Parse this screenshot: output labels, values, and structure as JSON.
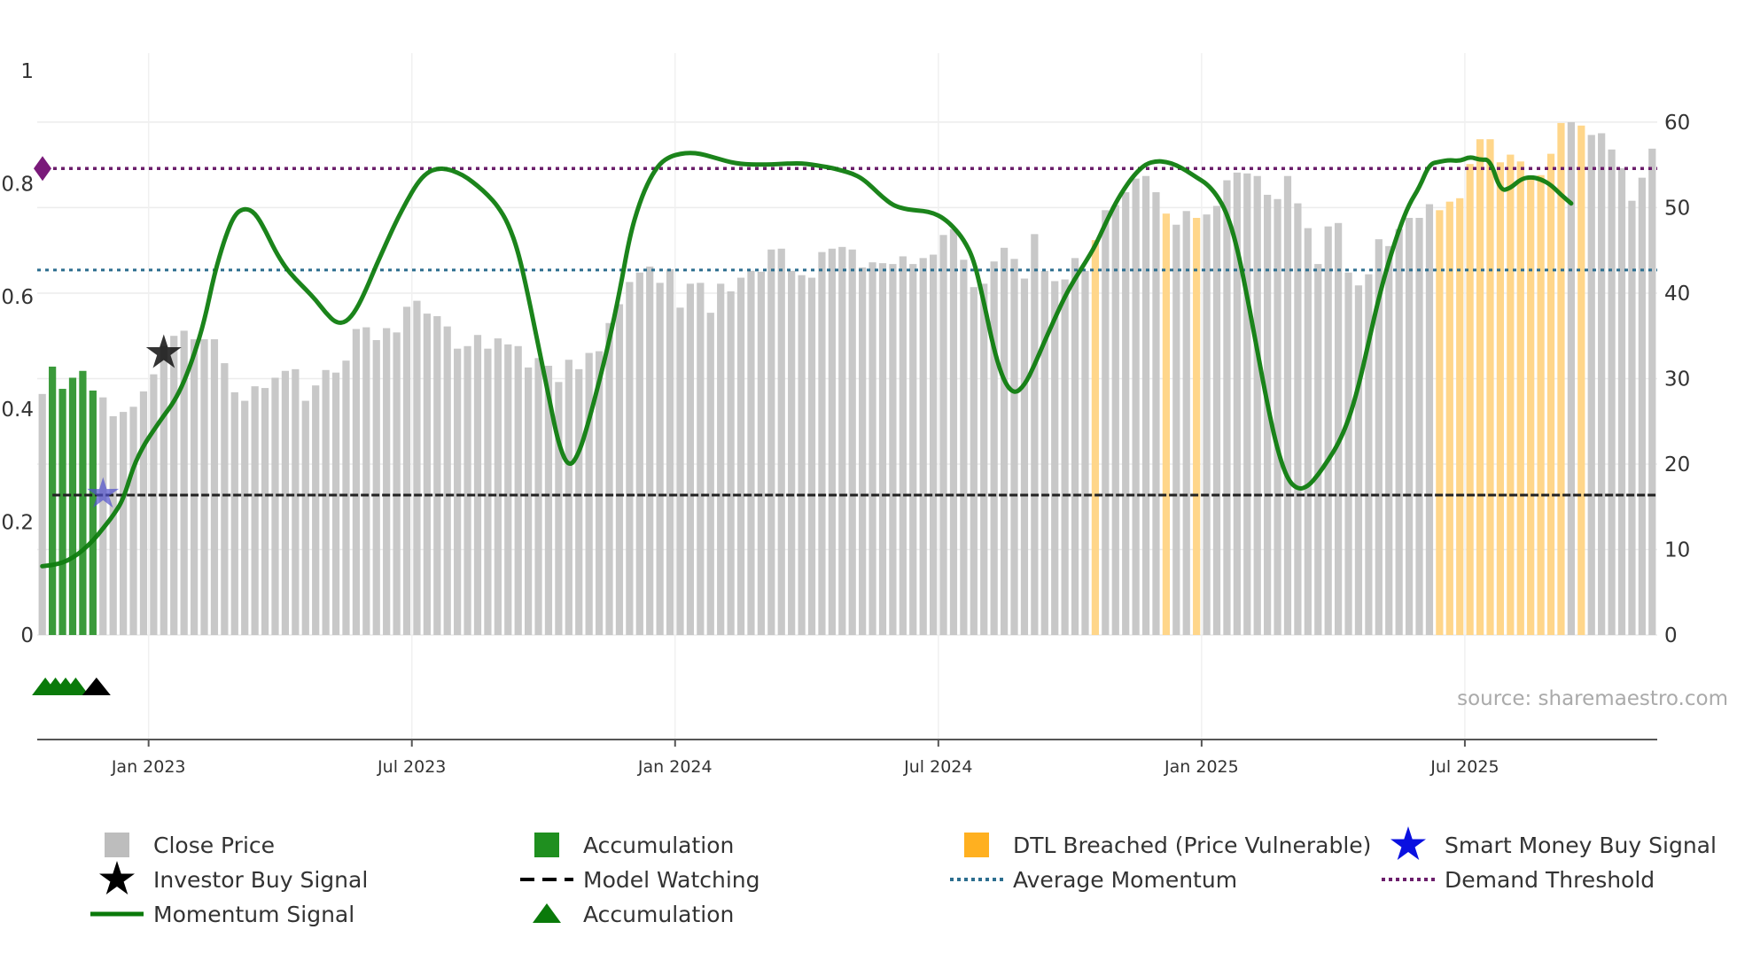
{
  "chart_data": {
    "type": "bar",
    "title": "",
    "source_label": "source: sharemaestro.com",
    "x_ticks": [
      "Jan 2023",
      "Jul 2023",
      "Jan 2024",
      "Jul 2024",
      "Jan 2025",
      "Jul 2025"
    ],
    "y_left": {
      "ticks": [
        "0",
        "0.2",
        "0.4",
        "0.6",
        "0.8",
        "1"
      ],
      "ylim": [
        0,
        1
      ]
    },
    "y_right": {
      "ticks": [
        "0",
        "10",
        "20",
        "30",
        "40",
        "50",
        "60"
      ],
      "ylim": [
        0,
        66
      ]
    },
    "colors": {
      "close": "#c8c8c8",
      "accumulation": "#3a9a3a",
      "dtl": "#ffd68a",
      "momentum": "#0f7d0f",
      "average": "#2c6e8f",
      "demand": "#6b1e6b",
      "watching": "#222222",
      "investor": "#111111",
      "smart_money": "#5050cc"
    },
    "prices": [
      28.2,
      31.4,
      28.8,
      30.1,
      30.9,
      28.6,
      27.8,
      25.6,
      26.1,
      26.7,
      28.5,
      30.5,
      33.8,
      35.0,
      35.6,
      34.6,
      34.6,
      34.6,
      31.8,
      28.4,
      27.4,
      29.1,
      28.9,
      30.1,
      30.9,
      31.1,
      27.4,
      29.2,
      31.0,
      30.7,
      32.1,
      35.8,
      36.0,
      34.5,
      35.9,
      35.4,
      38.4,
      39.1,
      37.6,
      37.3,
      36.1,
      33.5,
      33.8,
      35.1,
      33.5,
      34.7,
      34.0,
      33.8,
      31.3,
      32.4,
      31.5,
      29.6,
      32.2,
      31.1,
      33.0,
      33.2,
      36.5,
      38.7,
      41.3,
      42.4,
      43.1,
      41.2,
      42.8,
      38.3,
      41.1,
      41.2,
      37.7,
      41.1,
      40.2,
      41.8,
      42.6,
      42.5,
      45.1,
      45.2,
      42.6,
      42.1,
      41.8,
      44.8,
      45.2,
      45.4,
      45.1,
      43.0,
      43.6,
      43.5,
      43.4,
      44.3,
      43.4,
      44.1,
      44.5,
      46.8,
      47.5,
      43.9,
      40.7,
      41.1,
      43.7,
      45.3,
      44.0,
      41.7,
      46.9,
      42.6,
      41.4,
      41.6,
      44.1,
      42.6,
      46.2,
      49.7,
      50.3,
      51.8,
      53.4,
      53.7,
      51.8,
      49.3,
      48.0,
      49.6,
      48.8,
      49.2,
      50.2,
      53.2,
      54.1,
      54.0,
      53.7,
      51.5,
      51.0,
      53.7,
      50.5,
      47.6,
      43.4,
      47.8,
      48.2,
      42.4,
      40.9,
      42.2,
      46.3,
      45.5,
      47.5,
      48.8,
      48.8,
      50.4,
      49.7,
      50.7,
      51.1,
      55.1,
      58.0,
      58.0,
      55.3,
      56.2,
      55.4,
      53.5,
      53.8,
      56.3,
      59.9,
      60.0,
      59.6,
      58.5,
      58.7,
      56.8,
      54.6,
      50.8,
      53.5,
      56.9
    ],
    "dtl_bars": [
      104,
      111,
      114,
      138,
      139,
      140,
      141,
      142,
      143,
      144,
      145,
      146,
      147,
      148,
      149,
      150,
      152
    ],
    "accumulation_bars": [
      1,
      2,
      3,
      4,
      5
    ],
    "momentum": [
      0.122,
      0.124,
      0.128,
      0.137,
      0.15,
      0.167,
      0.189,
      0.212,
      0.24,
      0.299,
      0.336,
      0.363,
      0.389,
      0.413,
      0.449,
      0.497,
      0.556,
      0.64,
      0.702,
      0.746,
      0.757,
      0.749,
      0.718,
      0.681,
      0.652,
      0.631,
      0.613,
      0.594,
      0.571,
      0.553,
      0.554,
      0.576,
      0.613,
      0.656,
      0.696,
      0.735,
      0.769,
      0.8,
      0.82,
      0.827,
      0.826,
      0.82,
      0.81,
      0.796,
      0.78,
      0.76,
      0.73,
      0.68,
      0.601,
      0.512,
      0.424,
      0.337,
      0.296,
      0.321,
      0.381,
      0.449,
      0.522,
      0.606,
      0.706,
      0.767,
      0.809,
      0.836,
      0.848,
      0.853,
      0.855,
      0.853,
      0.848,
      0.843,
      0.838,
      0.835,
      0.834,
      0.834,
      0.834,
      0.835,
      0.836,
      0.836,
      0.834,
      0.831,
      0.828,
      0.823,
      0.818,
      0.809,
      0.793,
      0.776,
      0.762,
      0.756,
      0.753,
      0.752,
      0.748,
      0.739,
      0.723,
      0.701,
      0.666,
      0.59,
      0.504,
      0.448,
      0.427,
      0.442,
      0.479,
      0.521,
      0.561,
      0.6,
      0.632,
      0.66,
      0.69,
      0.729,
      0.766,
      0.795,
      0.819,
      0.835,
      0.84,
      0.839,
      0.833,
      0.823,
      0.811,
      0.8,
      0.78,
      0.748,
      0.688,
      0.6,
      0.504,
      0.409,
      0.327,
      0.275,
      0.258,
      0.263,
      0.284,
      0.31,
      0.339,
      0.38,
      0.441,
      0.519,
      0.598,
      0.663,
      0.719,
      0.764,
      0.793,
      0.835,
      0.839,
      0.842,
      0.84,
      0.848,
      0.842,
      0.843,
      0.787,
      0.792,
      0.808,
      0.812,
      0.808,
      0.798,
      0.78,
      0.765
    ],
    "average_momentum": 0.647,
    "demand_threshold": 0.827,
    "model_watching": 0.248,
    "investor_signal": {
      "index": 12,
      "y": 0.5
    },
    "smart_money_signal": {
      "index": 6,
      "y": 0.25
    },
    "accumulation_markers": [
      1,
      2,
      3,
      4
    ],
    "watch_marker": 5,
    "legend": [
      {
        "label": "Close Price",
        "icon": "square-gray"
      },
      {
        "label": "Accumulation",
        "icon": "square-green"
      },
      {
        "label": "DTL Breached (Price Vulnerable)",
        "icon": "square-orange"
      },
      {
        "label": "Smart Money Buy Signal",
        "icon": "star-blue"
      },
      {
        "label": "Investor Buy Signal",
        "icon": "star-black"
      },
      {
        "label": "Model Watching",
        "icon": "dash-black"
      },
      {
        "label": "Average Momentum",
        "icon": "dot-blue"
      },
      {
        "label": "Demand Threshold",
        "icon": "dot-purple"
      },
      {
        "label": "Momentum Signal",
        "icon": "line-green"
      },
      {
        "label": "Accumulation",
        "icon": "triangle-green"
      }
    ]
  }
}
